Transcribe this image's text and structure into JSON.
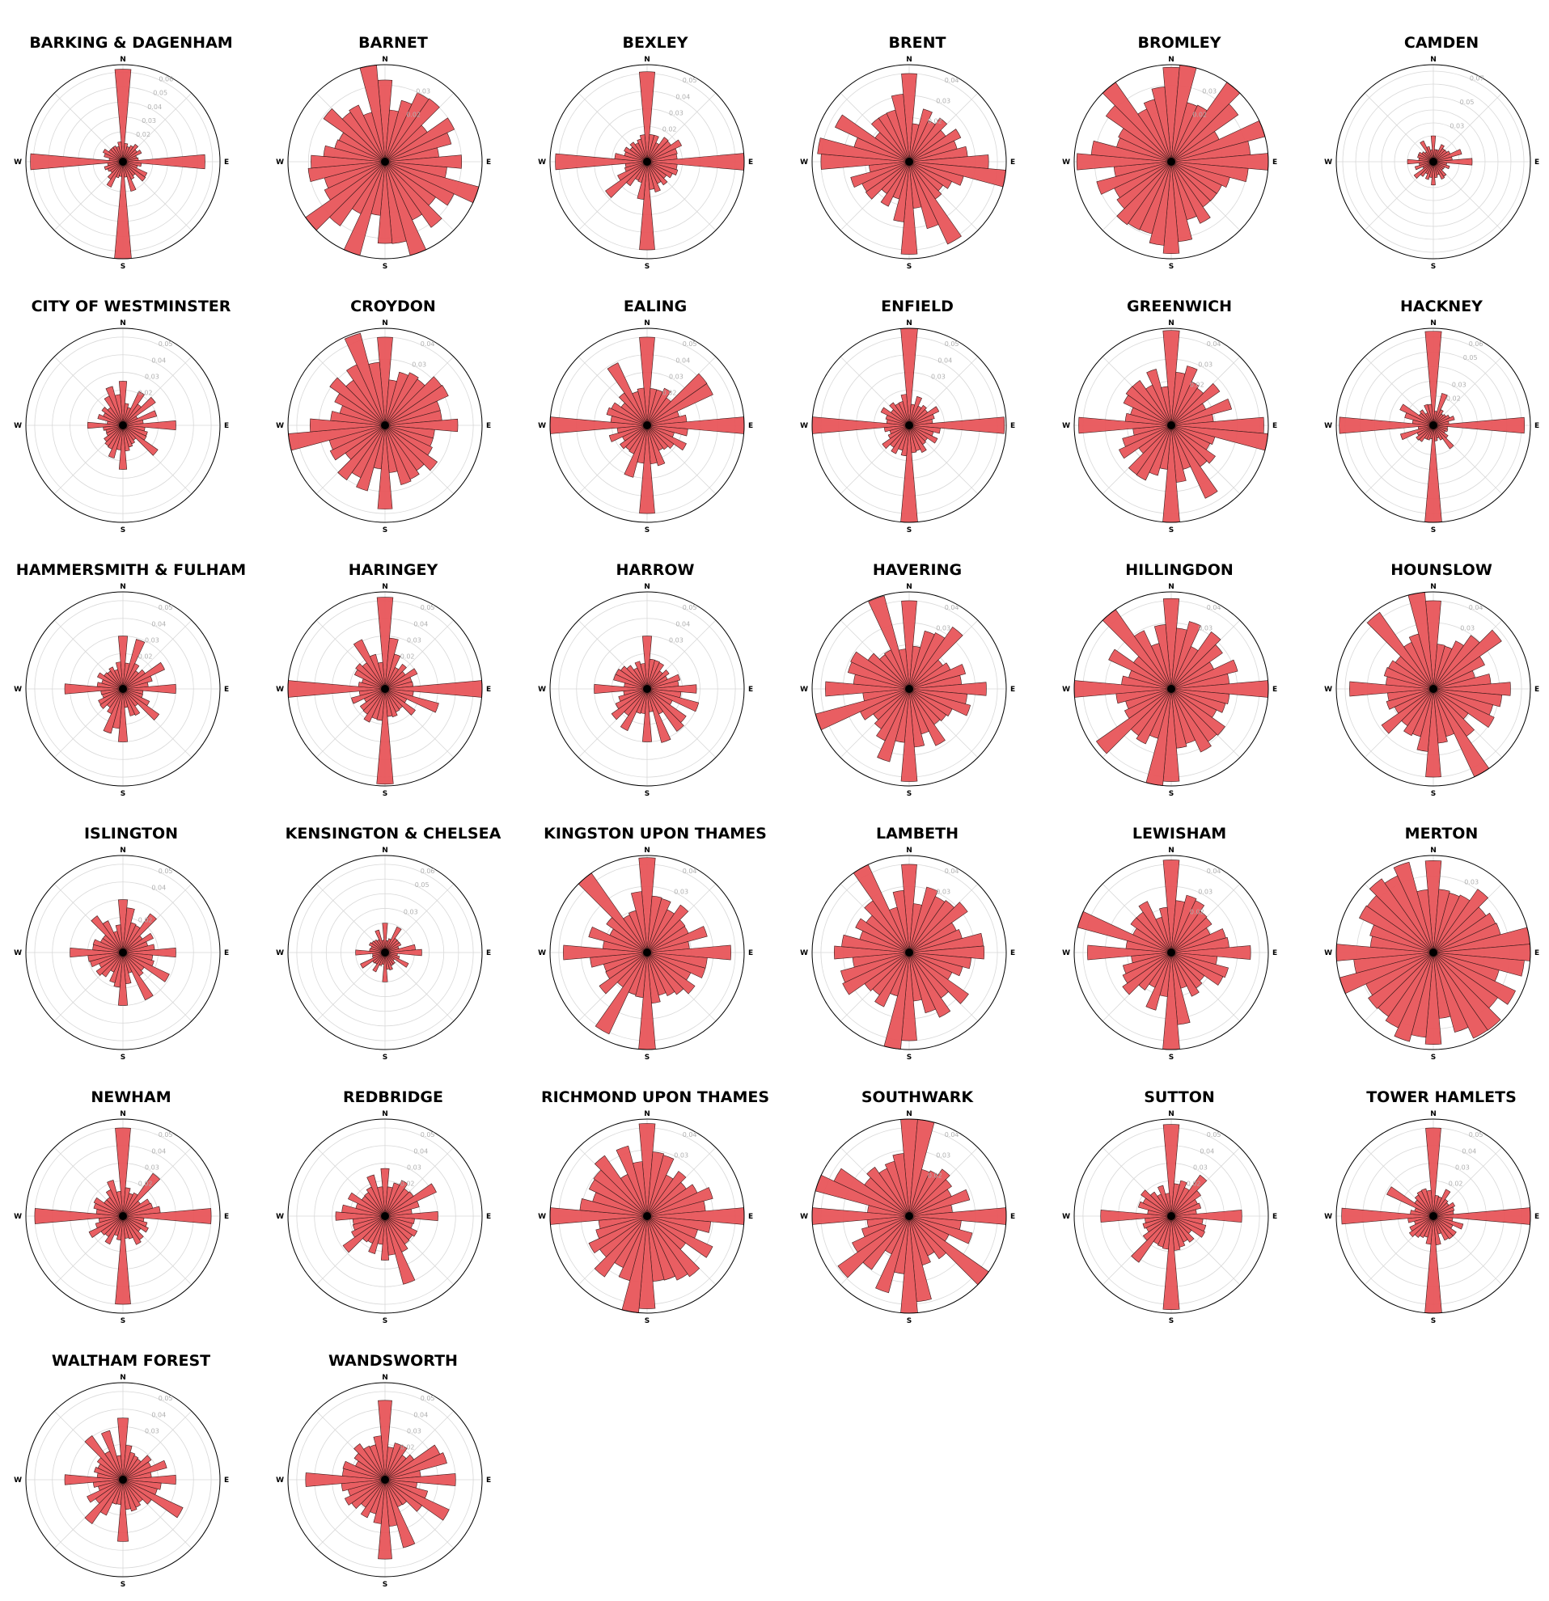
{
  "chart_data": {
    "type": "polar-bar",
    "bars_per_rose": 36,
    "bar_color": "#e8555a",
    "edge_color": "#3a1a1a",
    "direction_labels": [
      "N",
      "E",
      "S",
      "W"
    ],
    "panels": [
      {
        "title": "BARKING & DAGENHAM",
        "rmax": 0.065,
        "ticks": [
          "0.02",
          "0.03",
          "0.04",
          "0.05",
          "0.06"
        ],
        "peaks": [
          0.062,
          0.055,
          0.065,
          0.062
        ],
        "base": 0.012
      },
      {
        "title": "BARNET",
        "rmax": 0.038,
        "ticks": [
          "0.02",
          "0.03"
        ],
        "peaks": [
          0.032,
          0.03,
          0.032,
          0.029
        ],
        "base": 0.026
      },
      {
        "title": "BEXLEY",
        "rmax": 0.055,
        "ticks": [
          "0.02",
          "0.03",
          "0.04",
          "0.05"
        ],
        "peaks": [
          0.051,
          0.055,
          0.05,
          0.052
        ],
        "base": 0.015
      },
      {
        "title": "BRENT",
        "rmax": 0.044,
        "ticks": [
          "0.02",
          "0.03",
          "0.04"
        ],
        "peaks": [
          0.04,
          0.036,
          0.042,
          0.04
        ],
        "base": 0.022
      },
      {
        "title": "BROMLEY",
        "rmax": 0.038,
        "ticks": [
          "0.02",
          "0.03"
        ],
        "peaks": [
          0.037,
          0.038,
          0.036,
          0.037
        ],
        "base": 0.027
      },
      {
        "title": "CAMDEN",
        "rmax": 0.075,
        "ticks": [
          "0.03",
          "0.05",
          "0.07"
        ],
        "peaks": [
          0.02,
          0.03,
          0.018,
          0.02
        ],
        "base": 0.012
      },
      {
        "title": "CITY OF WESTMINSTER",
        "rmax": 0.055,
        "ticks": [
          "0.02",
          "0.03",
          "0.04",
          "0.05"
        ],
        "peaks": [
          0.025,
          0.03,
          0.025,
          0.02
        ],
        "base": 0.012
      },
      {
        "title": "CROYDON",
        "rmax": 0.044,
        "ticks": [
          "0.03",
          "0.04"
        ],
        "peaks": [
          0.04,
          0.033,
          0.038,
          0.034
        ],
        "base": 0.026
      },
      {
        "title": "EALING",
        "rmax": 0.055,
        "ticks": [
          "0.02",
          "0.03",
          "0.04",
          "0.05"
        ],
        "peaks": [
          0.05,
          0.055,
          0.05,
          0.055
        ],
        "base": 0.02
      },
      {
        "title": "ENFIELD",
        "rmax": 0.055,
        "ticks": [
          "0.03",
          "0.04",
          "0.05"
        ],
        "peaks": [
          0.055,
          0.054,
          0.055,
          0.055
        ],
        "base": 0.015
      },
      {
        "title": "GREENWICH",
        "rmax": 0.044,
        "ticks": [
          "0.02",
          "0.03",
          "0.04"
        ],
        "peaks": [
          0.043,
          0.042,
          0.044,
          0.042
        ],
        "base": 0.023
      },
      {
        "title": "HACKNEY",
        "rmax": 0.066,
        "ticks": [
          "0.02",
          "0.03",
          "0.05",
          "0.06"
        ],
        "peaks": [
          0.064,
          0.062,
          0.066,
          0.064
        ],
        "base": 0.012
      },
      {
        "title": "HAMMERSMITH & FULHAM",
        "rmax": 0.055,
        "ticks": [
          "0.02",
          "0.03",
          "0.04",
          "0.05"
        ],
        "peaks": [
          0.03,
          0.03,
          0.03,
          0.033
        ],
        "base": 0.014
      },
      {
        "title": "HARINGEY",
        "rmax": 0.055,
        "ticks": [
          "0.02",
          "0.03",
          "0.04",
          "0.05"
        ],
        "peaks": [
          0.052,
          0.055,
          0.054,
          0.055
        ],
        "base": 0.017
      },
      {
        "title": "HARROW",
        "rmax": 0.055,
        "ticks": [
          "0.03",
          "0.04",
          "0.05"
        ],
        "peaks": [
          0.03,
          0.028,
          0.03,
          0.03
        ],
        "base": 0.016
      },
      {
        "title": "HAVERING",
        "rmax": 0.044,
        "ticks": [
          "0.03",
          "0.04"
        ],
        "peaks": [
          0.04,
          0.035,
          0.042,
          0.038
        ],
        "base": 0.024
      },
      {
        "title": "HILLINGDON",
        "rmax": 0.044,
        "ticks": [
          "0.03",
          "0.04"
        ],
        "peaks": [
          0.041,
          0.044,
          0.042,
          0.044
        ],
        "base": 0.026
      },
      {
        "title": "HOUNSLOW",
        "rmax": 0.044,
        "ticks": [
          "0.03",
          "0.04"
        ],
        "peaks": [
          0.04,
          0.035,
          0.04,
          0.038
        ],
        "base": 0.025
      },
      {
        "title": "ISLINGTON",
        "rmax": 0.055,
        "ticks": [
          "0.02",
          "0.04",
          "0.05"
        ],
        "peaks": [
          0.03,
          0.03,
          0.03,
          0.03
        ],
        "base": 0.016
      },
      {
        "title": "KENSINGTON & CHELSEA",
        "rmax": 0.066,
        "ticks": [
          "0.03",
          "0.05",
          "0.06"
        ],
        "peaks": [
          0.02,
          0.025,
          0.02,
          0.02
        ],
        "base": 0.01
      },
      {
        "title": "KINGSTON UPON THAMES",
        "rmax": 0.044,
        "ticks": [
          "0.03",
          "0.04"
        ],
        "peaks": [
          0.043,
          0.038,
          0.044,
          0.038
        ],
        "base": 0.024
      },
      {
        "title": "LAMBETH",
        "rmax": 0.044,
        "ticks": [
          "0.03",
          "0.04"
        ],
        "peaks": [
          0.04,
          0.034,
          0.04,
          0.034
        ],
        "base": 0.027
      },
      {
        "title": "LEWISHAM",
        "rmax": 0.044,
        "ticks": [
          "0.02",
          "0.03",
          "0.04"
        ],
        "peaks": [
          0.042,
          0.036,
          0.044,
          0.038
        ],
        "base": 0.022
      },
      {
        "title": "MERTON",
        "rmax": 0.038,
        "ticks": [
          "0.03"
        ],
        "peaks": [
          0.036,
          0.038,
          0.036,
          0.038
        ],
        "base": 0.03
      },
      {
        "title": "NEWHAM",
        "rmax": 0.055,
        "ticks": [
          "0.02",
          "0.03",
          "0.04",
          "0.05"
        ],
        "peaks": [
          0.05,
          0.05,
          0.05,
          0.05
        ],
        "base": 0.015
      },
      {
        "title": "REDBRIDGE",
        "rmax": 0.055,
        "ticks": [
          "0.02",
          "0.03",
          "0.04",
          "0.05"
        ],
        "peaks": [
          0.027,
          0.03,
          0.025,
          0.028
        ],
        "base": 0.02
      },
      {
        "title": "RICHMOND UPON THAMES",
        "rmax": 0.044,
        "ticks": [
          "0.03",
          "0.04"
        ],
        "peaks": [
          0.042,
          0.044,
          0.042,
          0.044
        ],
        "base": 0.027
      },
      {
        "title": "SOUTHWARK",
        "rmax": 0.044,
        "ticks": [
          "0.02",
          "0.03",
          "0.04"
        ],
        "peaks": [
          0.044,
          0.044,
          0.044,
          0.044
        ],
        "base": 0.024
      },
      {
        "title": "SUTTON",
        "rmax": 0.055,
        "ticks": [
          "0.02",
          "0.03",
          "0.04",
          "0.05"
        ],
        "peaks": [
          0.052,
          0.04,
          0.053,
          0.04
        ],
        "base": 0.017
      },
      {
        "title": "TOWER HAMLETS",
        "rmax": 0.055,
        "ticks": [
          "0.02",
          "0.03",
          "0.04",
          "0.05"
        ],
        "peaks": [
          0.05,
          0.055,
          0.055,
          0.052
        ],
        "base": 0.014
      },
      {
        "title": "WALTHAM FOREST",
        "rmax": 0.055,
        "ticks": [
          "0.03",
          "0.04",
          "0.05"
        ],
        "peaks": [
          0.035,
          0.03,
          0.035,
          0.033
        ],
        "base": 0.018
      },
      {
        "title": "WANDSWORTH",
        "rmax": 0.055,
        "ticks": [
          "0.02",
          "0.03",
          "0.04",
          "0.05"
        ],
        "peaks": [
          0.045,
          0.04,
          0.045,
          0.045
        ],
        "base": 0.022
      }
    ]
  }
}
